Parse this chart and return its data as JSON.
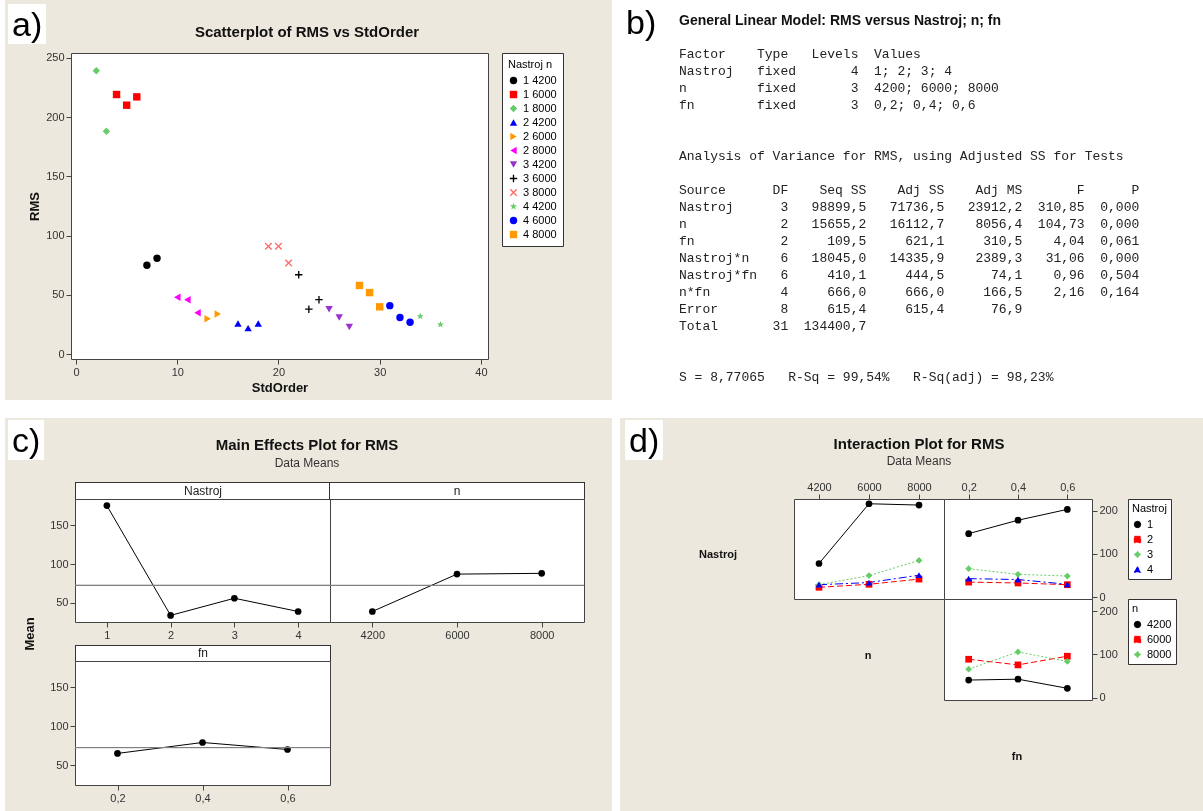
{
  "chart_data": [
    {
      "type": "scatter",
      "title": "Scatterplot of RMS vs StdOrder",
      "xlabel": "StdOrder",
      "ylabel": "RMS",
      "legend": "right",
      "legend_title": "Nastroj n",
      "annotations": [
        "a)"
      ],
      "xlim": [
        -0.5,
        40.7
      ],
      "xticks": [
        0,
        10,
        20,
        30,
        40
      ],
      "ylim": [
        -4,
        254
      ],
      "yticks": [
        0,
        50,
        100,
        150,
        200,
        250
      ],
      "series": [
        {
          "name": "1 4200",
          "color": "#000000",
          "marker": "circle",
          "x": [
            7,
            8
          ],
          "values": [
            75,
            81
          ]
        },
        {
          "name": "1 6000",
          "color": "#ff0000",
          "marker": "square",
          "x": [
            4,
            5,
            6
          ],
          "values": [
            219,
            210,
            217
          ]
        },
        {
          "name": "1 8000",
          "color": "#66cc66",
          "marker": "diamond",
          "x": [
            2,
            3
          ],
          "values": [
            239,
            188
          ]
        },
        {
          "name": "2 4200",
          "color": "#0000ff",
          "marker": "triangle",
          "x": [
            16,
            17,
            18
          ],
          "values": [
            26,
            22,
            26
          ]
        },
        {
          "name": "2 6000",
          "color": "#ff9900",
          "marker": "triangle-right",
          "x": [
            13,
            14
          ],
          "values": [
            30,
            34
          ]
        },
        {
          "name": "2 8000",
          "color": "#ff00ff",
          "marker": "triangle-left",
          "x": [
            10,
            11,
            12
          ],
          "values": [
            48,
            46,
            35
          ]
        },
        {
          "name": "3 4200",
          "color": "#9933cc",
          "marker": "triangle-down",
          "x": [
            25,
            26,
            27
          ],
          "values": [
            38,
            31,
            23
          ]
        },
        {
          "name": "3 6000",
          "color": "#000000",
          "marker": "cross",
          "x": [
            22,
            23,
            24
          ],
          "values": [
            67,
            38,
            46
          ]
        },
        {
          "name": "3 8000",
          "color": "#ff6666",
          "marker": "x",
          "x": [
            19,
            20,
            21
          ],
          "values": [
            91,
            91,
            77
          ]
        },
        {
          "name": "4 4200",
          "color": "#66cc66",
          "marker": "star",
          "x": [
            34,
            36
          ],
          "values": [
            32,
            25
          ]
        },
        {
          "name": "4 6000",
          "color": "#0000ff",
          "marker": "circle",
          "x": [
            31,
            32,
            33
          ],
          "values": [
            41,
            31,
            27
          ]
        },
        {
          "name": "4 8000",
          "color": "#ff9900",
          "marker": "square",
          "x": [
            28,
            29,
            30
          ],
          "values": [
            58,
            52,
            40
          ]
        }
      ]
    },
    {
      "type": "other",
      "title": "General Linear Model: RMS versus Nastroj; n; fn",
      "annotations": [
        "b)",
        "Factor    Type   Levels  Values",
        "Nastroj   fixed       4  1; 2; 3; 4",
        "n         fixed       3  4200; 6000; 8000",
        "fn        fixed       3  0,2; 0,4; 0,6",
        "Analysis of Variance for RMS, using Adjusted SS for Tests",
        "Source      DF    Seq SS    Adj SS    Adj MS       F      P",
        "Nastroj      3   98899,5   71736,5   23912,2  310,85  0,000",
        "n            2   15655,2   16112,7    8056,4  104,73  0,000",
        "fn           2     109,5     621,1     310,5    4,04  0,061",
        "Nastroj*n    6   18045,0   14335,9    2389,3   31,06  0,000",
        "Nastroj*fn   6     410,1     444,5      74,1    0,96  0,504",
        "n*fn         4     666,0     666,0     166,5    2,16  0,164",
        "Error        8     615,4     615,4      76,9",
        "Total       31  134400,7",
        "S = 8,77065   R-Sq = 99,54%   R-Sq(adj) = 98,23%"
      ]
    },
    {
      "type": "line",
      "title": "Main Effects Plot for RMS",
      "subtitle": "Data Means",
      "ylabel": "Mean",
      "xlabel": "Nastroj",
      "annotations": [
        "c)"
      ],
      "categories": [
        "1",
        "2",
        "3",
        "4"
      ],
      "values": [
        175,
        34,
        56,
        39
      ],
      "color": "#000000",
      "marker": "circle",
      "ylim": [
        25.5,
        183.5
      ],
      "yticks": [
        50,
        100,
        150
      ],
      "ref_lines": [
        {
          "axis": "y",
          "value": 72.5,
          "color": "#808080"
        }
      ]
    },
    {
      "type": "line",
      "xlabel": "n",
      "categories": [
        "4200",
        "6000",
        "8000"
      ],
      "values": [
        39,
        87,
        88
      ],
      "color": "#000000",
      "marker": "circle",
      "ylim": [
        25.5,
        183.5
      ],
      "yticks": [
        50,
        100,
        150
      ],
      "tick_labels": "x",
      "ref_lines": [
        {
          "axis": "y",
          "value": 72.5,
          "color": "#808080"
        }
      ]
    },
    {
      "type": "line",
      "xlabel": "fn",
      "categories": [
        "0,2",
        "0,4",
        "0,6"
      ],
      "values": [
        65,
        79,
        70
      ],
      "color": "#000000",
      "marker": "circle",
      "ylim": [
        24.5,
        183.5
      ],
      "yticks": [
        50,
        100,
        150
      ],
      "ref_lines": [
        {
          "axis": "y",
          "value": 72.5,
          "color": "#808080"
        }
      ]
    },
    {
      "type": "line",
      "title": "Interaction Plot for RMS",
      "subtitle": "Data Means",
      "ylabel": "Nastroj",
      "annotations": [
        "d)"
      ],
      "categories": [
        "4200",
        "6000",
        "8000"
      ],
      "ylim": [
        -4,
        227
      ],
      "yticks": [
        0,
        100,
        200
      ],
      "tick_labels": "x",
      "series": [
        {
          "color": "#000000",
          "marker": "circle",
          "line_style": "solid",
          "values": [
            78,
            216,
            213
          ]
        },
        {
          "color": "#ff0000",
          "marker": "square",
          "line_style": "dashed",
          "values": [
            23,
            30,
            42
          ]
        },
        {
          "color": "#66cc66",
          "marker": "diamond",
          "line_style": "dotted",
          "values": [
            29,
            50,
            85
          ]
        },
        {
          "color": "#0000ff",
          "marker": "triangle",
          "line_style": "dashdot",
          "values": [
            29,
            34,
            51
          ]
        }
      ]
    },
    {
      "type": "line",
      "legend": "right",
      "legend_title": "Nastroj",
      "categories": [
        "0,2",
        "0,4",
        "0,6"
      ],
      "ylim": [
        -4,
        227
      ],
      "yticks": [
        0,
        100,
        200
      ],
      "series": [
        {
          "name": "1",
          "color": "#000000",
          "marker": "circle",
          "line_style": "solid",
          "values": [
            147,
            178,
            203
          ]
        },
        {
          "name": "2",
          "color": "#ff0000",
          "marker": "square",
          "line_style": "dashed",
          "values": [
            35,
            33,
            29
          ]
        },
        {
          "name": "3",
          "color": "#66cc66",
          "marker": "diamond",
          "line_style": "dotted",
          "values": [
            66,
            53,
            49
          ]
        },
        {
          "name": "4",
          "color": "#0000ff",
          "marker": "triangle",
          "line_style": "dashdot",
          "values": [
            43,
            41,
            30
          ]
        }
      ]
    },
    {
      "type": "line",
      "ylabel": "n",
      "xlabel": "fn",
      "legend": "right",
      "legend_title": "n",
      "categories": [
        null,
        null,
        null
      ],
      "ylim": [
        -5,
        228
      ],
      "yticks": [
        0,
        100,
        200
      ],
      "tick_labels": "y",
      "series": [
        {
          "name": "4200",
          "color": "#000000",
          "marker": "circle",
          "line_style": "solid",
          "values": [
            41,
            43,
            22
          ]
        },
        {
          "name": "6000",
          "color": "#ff0000",
          "marker": "square",
          "line_style": "dashed",
          "values": [
            89,
            76,
            96
          ]
        },
        {
          "name": "8000",
          "color": "#66cc66",
          "marker": "diamond",
          "line_style": "dotted",
          "values": [
            66,
            106,
            84
          ]
        }
      ]
    }
  ]
}
